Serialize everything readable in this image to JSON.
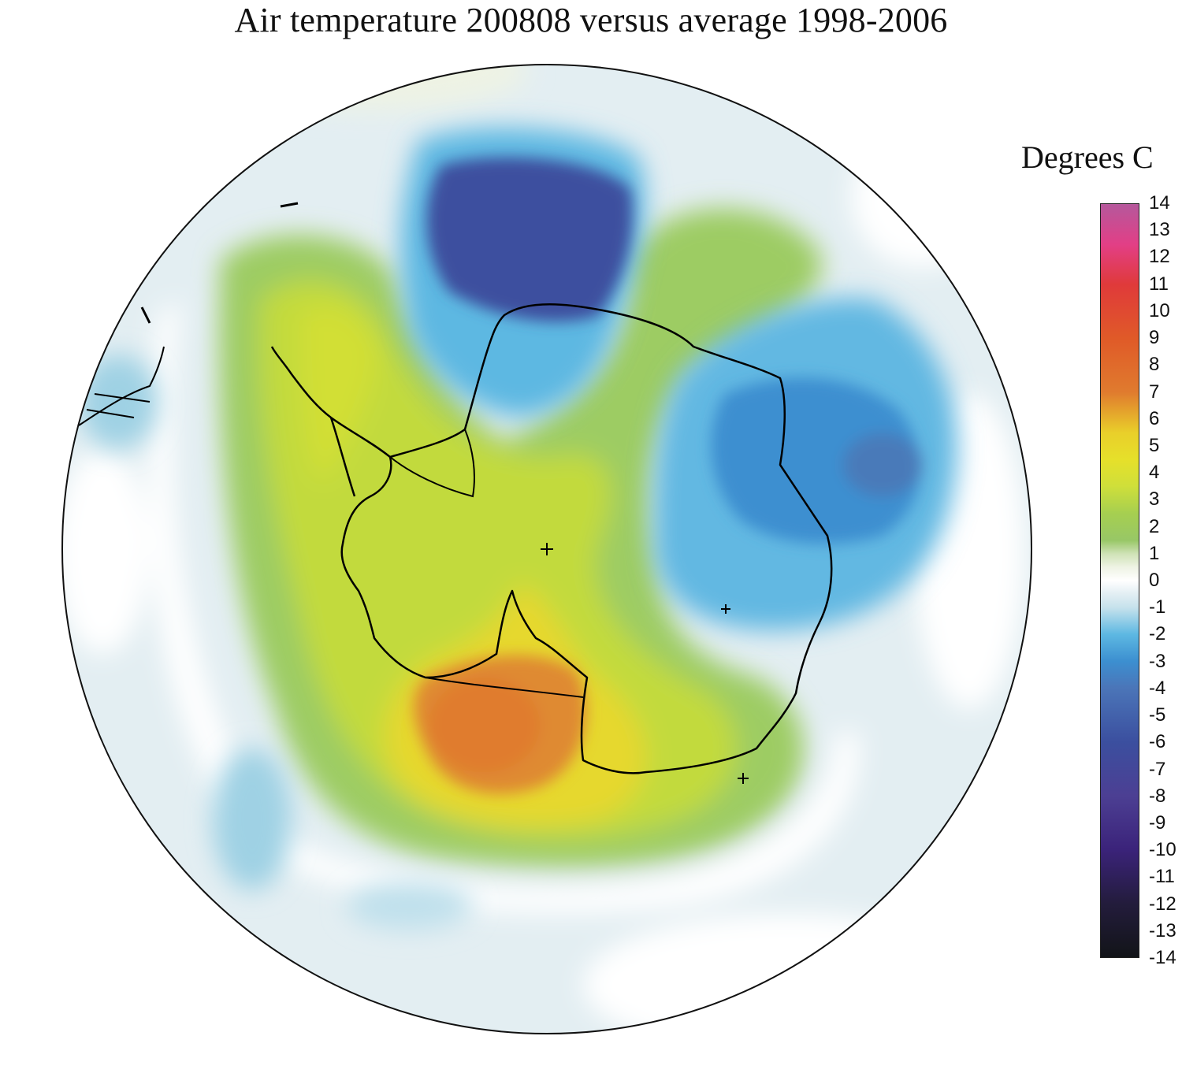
{
  "title": "Air temperature 200808 versus average 1998-2006",
  "legend": {
    "title": "Degrees C",
    "ticks": [
      "14",
      "13",
      "12",
      "11",
      "10",
      "9",
      "8",
      "7",
      "6",
      "5",
      "4",
      "3",
      "2",
      "1",
      "0",
      "-1",
      "-2",
      "-3",
      "-4",
      "-5",
      "-6",
      "-7",
      "-8",
      "-9",
      "-10",
      "-11",
      "-12",
      "-13",
      "-14"
    ],
    "colors": [
      {
        "value": 14,
        "color": "#b5589c"
      },
      {
        "value": 12.5,
        "color": "#e23f86"
      },
      {
        "value": 11,
        "color": "#e03a3a"
      },
      {
        "value": 9,
        "color": "#e05a28"
      },
      {
        "value": 7,
        "color": "#e07b2e"
      },
      {
        "value": 5.5,
        "color": "#e9cf2a"
      },
      {
        "value": 4.5,
        "color": "#e6e02a"
      },
      {
        "value": 3.5,
        "color": "#cfdf3a"
      },
      {
        "value": 2.5,
        "color": "#a6cf50"
      },
      {
        "value": 1.5,
        "color": "#98c766"
      },
      {
        "value": 1,
        "color": "#cfe2b6"
      },
      {
        "value": 0.5,
        "color": "#eef3e4"
      },
      {
        "value": 0,
        "color": "#ffffff"
      },
      {
        "value": -0.5,
        "color": "#e2eef3"
      },
      {
        "value": -1,
        "color": "#c6e2ec"
      },
      {
        "value": -2,
        "color": "#5db8e2"
      },
      {
        "value": -3,
        "color": "#3c8fd0"
      },
      {
        "value": -4,
        "color": "#4b75b8"
      },
      {
        "value": -6,
        "color": "#3b4f9f"
      },
      {
        "value": -8,
        "color": "#4c3f93"
      },
      {
        "value": -10,
        "color": "#3b237a"
      },
      {
        "value": -12,
        "color": "#231c3c"
      },
      {
        "value": -14,
        "color": "#121418"
      }
    ]
  }
}
